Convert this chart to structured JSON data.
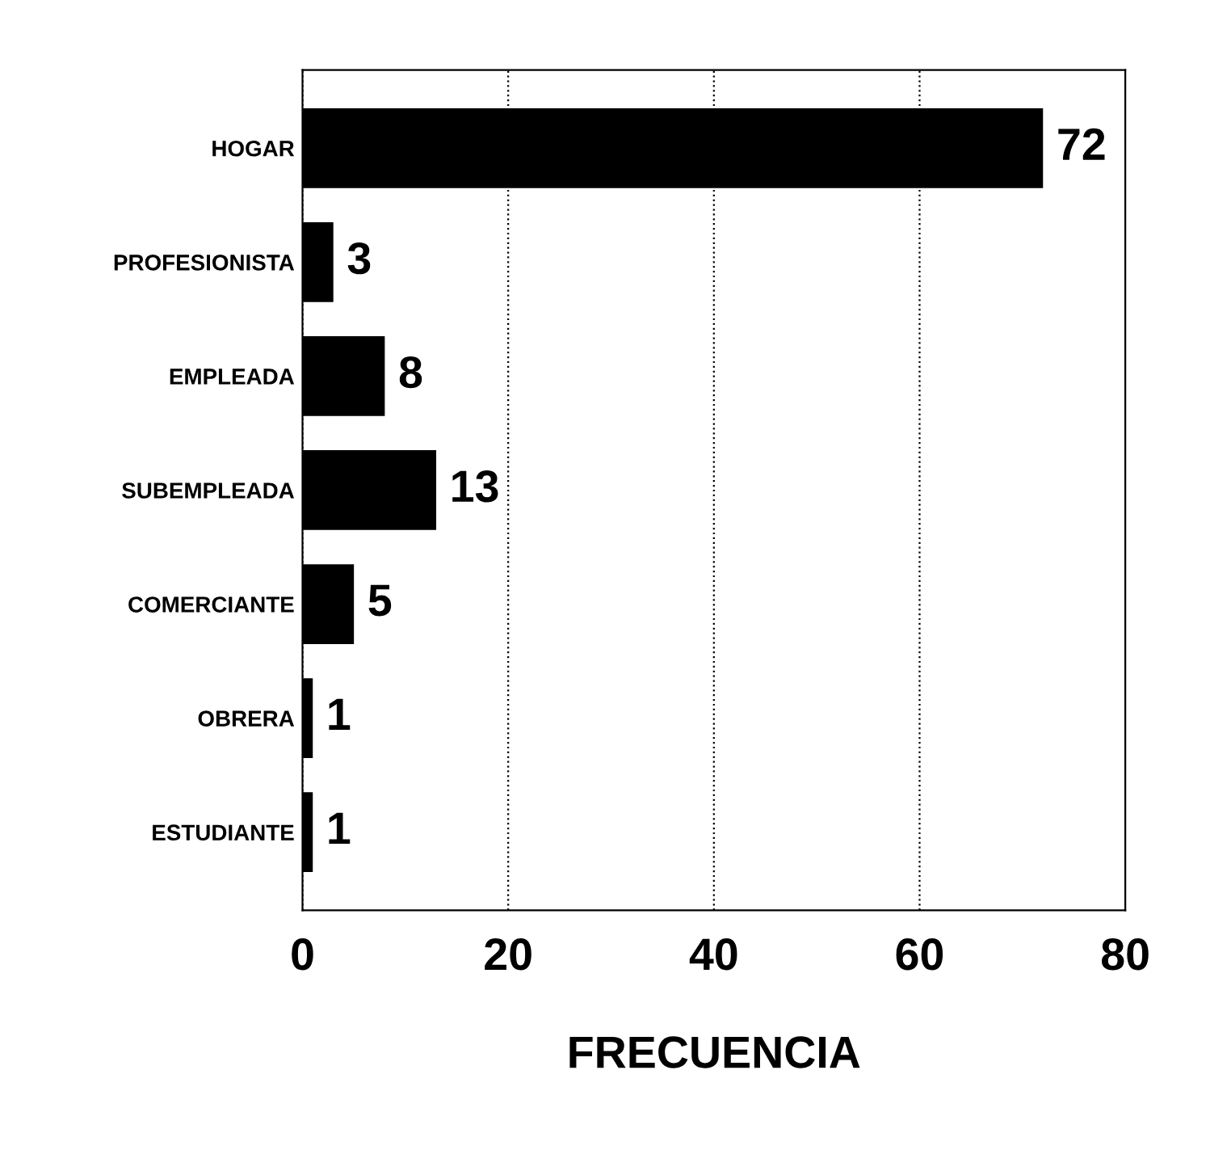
{
  "chart_data": {
    "type": "bar",
    "orientation": "horizontal",
    "xlabel": "FRECUENCIA",
    "categories": [
      "HOGAR",
      "PROFESIONISTA",
      "EMPLEADA",
      "SUBEMPLEADA",
      "COMERCIANTE",
      "OBRERA",
      "ESTUDIANTE"
    ],
    "values": [
      72,
      3,
      8,
      13,
      5,
      1,
      1
    ],
    "color": "#000000",
    "xlim": [
      0,
      80
    ],
    "xticks": [
      0,
      20,
      40,
      60,
      80
    ],
    "grid": "x",
    "data_labels": true
  }
}
